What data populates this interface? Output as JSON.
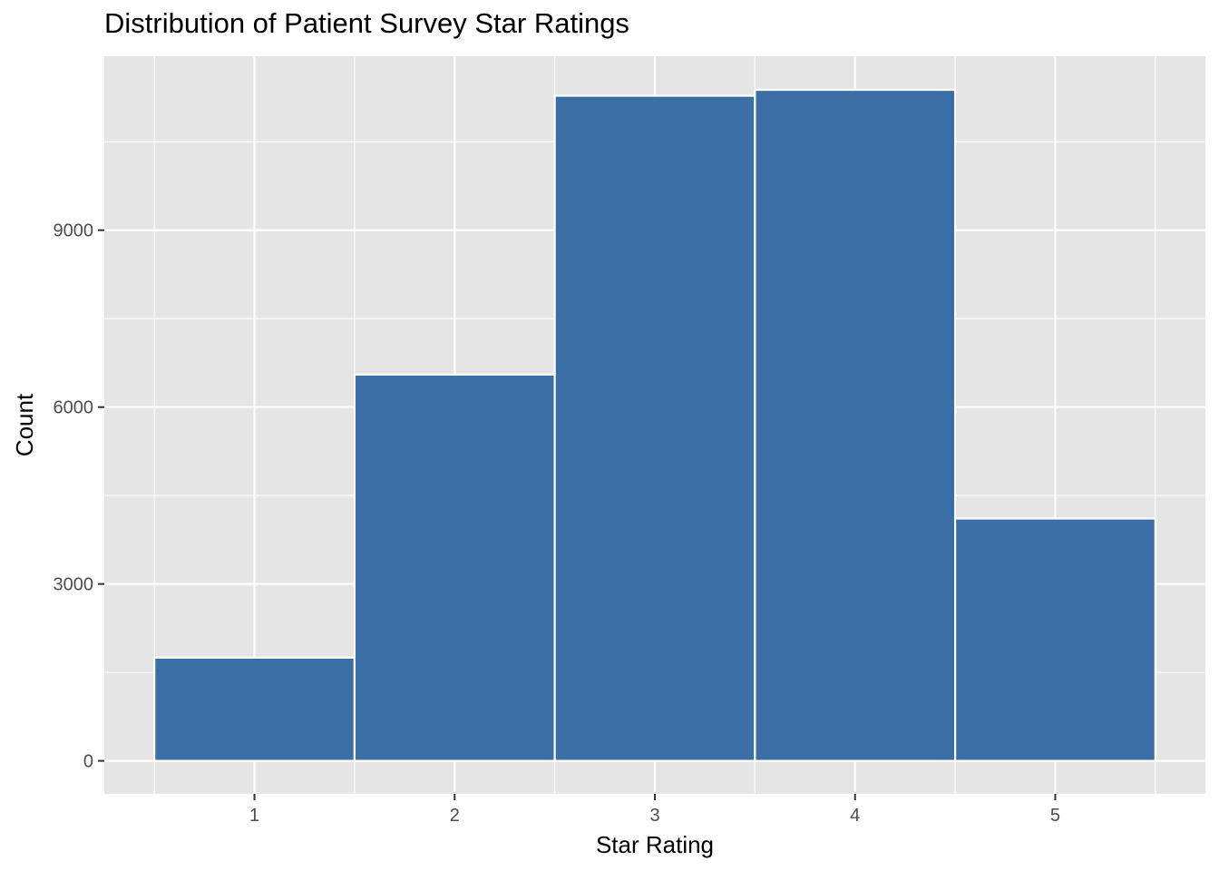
{
  "chart_data": {
    "type": "bar",
    "title": "Distribution of Patient Survey Star Ratings",
    "xlabel": "Star Rating",
    "ylabel": "Count",
    "categories": [
      "1",
      "2",
      "3",
      "4",
      "5"
    ],
    "values": [
      1750,
      6550,
      11280,
      11380,
      4110
    ],
    "x_ticks": [
      "1",
      "2",
      "3",
      "4",
      "5"
    ],
    "y_ticks": [
      0,
      3000,
      6000,
      9000
    ],
    "y_tick_labels": [
      "0",
      "3000",
      "6000",
      "9000"
    ],
    "ylim": [
      -560,
      11950
    ],
    "grid": true,
    "legend": "none",
    "colors": {
      "bar_fill": "#3a6ea5",
      "bar_outline": "#ffffff",
      "panel": "#e5e5e5",
      "grid": "#ffffff"
    }
  }
}
